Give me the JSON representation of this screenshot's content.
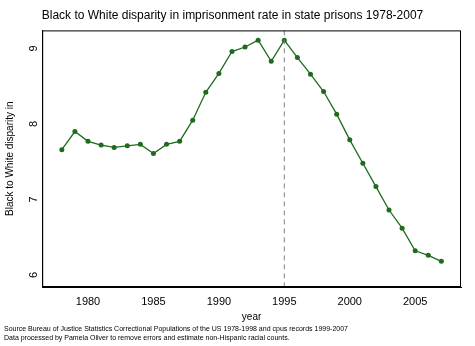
{
  "chart_data": {
    "type": "line",
    "title": "Black to White disparity in imprisonment rate in state prisons 1978-2007",
    "x_label": "year",
    "y_label": "Black to White disparity in",
    "notes": [
      "Source Bureau of Justice Statistics Correctional Populations of the US 1978-1998 and cpus records 1999-2007",
      "Data processed by Pamela Oliver to remove errors and estimate non-Hispanic racial counts."
    ],
    "x": [
      1978,
      1979,
      1980,
      1981,
      1982,
      1983,
      1984,
      1985,
      1986,
      1987,
      1988,
      1989,
      1990,
      1991,
      1992,
      1993,
      1994,
      1995,
      1996,
      1997,
      1998,
      1999,
      2000,
      2001,
      2002,
      2003,
      2004,
      2005,
      2006,
      2007
    ],
    "values": [
      7.62,
      7.86,
      7.73,
      7.68,
      7.65,
      7.67,
      7.69,
      7.57,
      7.69,
      7.73,
      8.01,
      8.38,
      8.63,
      8.92,
      8.98,
      9.07,
      8.79,
      9.07,
      8.84,
      8.62,
      8.39,
      8.09,
      7.75,
      7.44,
      7.13,
      6.82,
      6.58,
      6.28,
      6.22,
      6.14
    ],
    "color": "#1e6b1e",
    "marker": "circle",
    "line_style": "solid",
    "xlim": [
      1976.5,
      2008.5
    ],
    "xticks": [
      1980,
      1985,
      1990,
      1995,
      2000,
      2005
    ],
    "ylim": [
      5.8,
      9.2
    ],
    "yticks": [
      6,
      7,
      8,
      9
    ],
    "grid": false,
    "reference_lines": [
      {
        "x": 1995,
        "line_style": "dashed",
        "color": "#808080"
      }
    ]
  }
}
